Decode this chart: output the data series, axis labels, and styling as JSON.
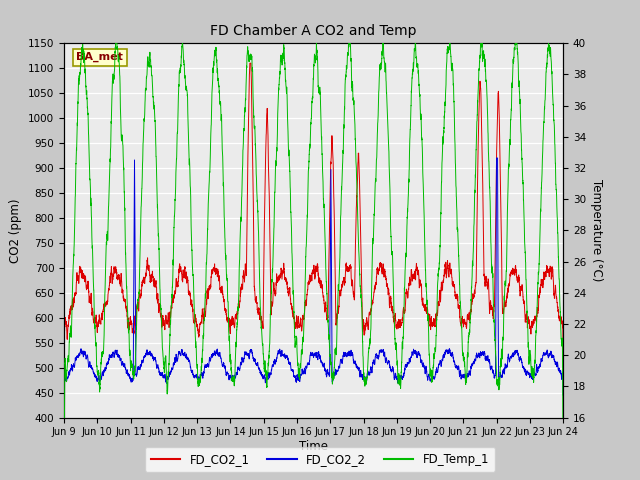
{
  "title": "FD Chamber A CO2 and Temp",
  "xlabel": "Time",
  "ylabel_left": "CO2 (ppm)",
  "ylabel_right": "Temperature (°C)",
  "ylim_left": [
    400,
    1150
  ],
  "ylim_right": [
    16,
    40
  ],
  "yticks_left": [
    400,
    450,
    500,
    550,
    600,
    650,
    700,
    750,
    800,
    850,
    900,
    950,
    1000,
    1050,
    1100,
    1150
  ],
  "yticks_right": [
    16,
    18,
    20,
    22,
    24,
    26,
    28,
    30,
    32,
    34,
    36,
    38,
    40
  ],
  "xtick_labels": [
    "Jun 9",
    "Jun 10",
    "Jun 11",
    "Jun 12",
    "Jun 13",
    "Jun 14",
    "Jun 15",
    "Jun 16",
    "Jun 17",
    "Jun 18",
    "Jun 19",
    "Jun 20",
    "Jun 21",
    "Jun 22",
    "Jun 23",
    "Jun 24"
  ],
  "color_co2_1": "#dd0000",
  "color_co2_2": "#0000dd",
  "color_temp": "#00bb00",
  "fig_bg": "#c8c8c8",
  "plot_bg": "#ebebeb",
  "grid_color": "#ffffff",
  "legend_labels": [
    "FD_CO2_1",
    "FD_CO2_2",
    "FD_Temp_1"
  ],
  "annotation_text": "BA_met",
  "annotation_bg": "#ffffcc",
  "annotation_edge": "#999900",
  "annotation_text_color": "#880000",
  "figsize": [
    6.4,
    4.8
  ],
  "dpi": 100
}
